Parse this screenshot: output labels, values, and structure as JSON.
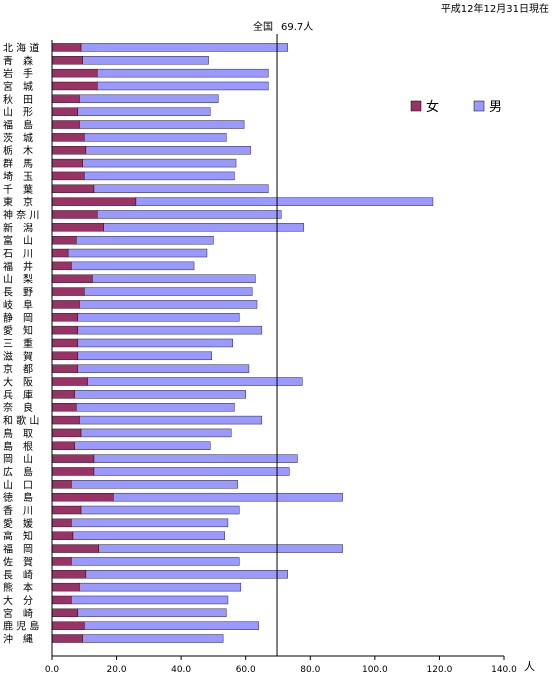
{
  "date_note": "平成12年12月31日現在",
  "national_label": "全国",
  "national_value_label": "69.7人",
  "unit": "人",
  "colors": {
    "female": "#993366",
    "male": "#9999ff",
    "axis": "#000000"
  },
  "chart_data": {
    "type": "bar",
    "orientation": "horizontal",
    "stacked": true,
    "categories": [
      "北 海 道",
      "青　森",
      "岩　手",
      "宮　城",
      "秋　田",
      "山　形",
      "福　島",
      "茨　城",
      "栃　木",
      "群　馬",
      "埼　玉",
      "千　葉",
      "東　京",
      "神 奈 川",
      "新　潟",
      "富　山",
      "石　川",
      "福　井",
      "山　梨",
      "長　野",
      "岐　阜",
      "静　岡",
      "愛　知",
      "三　重",
      "滋　賀",
      "京　都",
      "大　阪",
      "兵　庫",
      "奈　良",
      "和 歌 山",
      "鳥　取",
      "島　根",
      "岡　山",
      "広　島",
      "山　口",
      "徳　島",
      "香　川",
      "愛　媛",
      "高　知",
      "福　岡",
      "佐　賀",
      "長　崎",
      "熊　本",
      "大　分",
      "宮　崎",
      "鹿 児 島",
      "沖　縄"
    ],
    "series": [
      {
        "name": "女",
        "values": [
          9,
          9.5,
          14,
          14,
          8.5,
          8,
          8.5,
          10,
          10.5,
          9.5,
          10,
          13,
          26,
          14,
          16,
          7.5,
          5,
          6,
          12.5,
          10,
          8.5,
          8,
          8,
          8,
          8,
          8,
          11,
          7,
          7.5,
          8.5,
          9,
          7,
          13,
          13,
          6,
          19,
          9,
          6,
          6.5,
          14.5,
          6,
          10.5,
          8.5,
          6,
          8,
          10,
          9.5
        ]
      },
      {
        "name": "男",
        "values": [
          64,
          39,
          53,
          53,
          43,
          41,
          51,
          44,
          51,
          47.5,
          46.5,
          54,
          92,
          57,
          62,
          42.5,
          43,
          38,
          50.5,
          52,
          55,
          50,
          57,
          48,
          41.5,
          53,
          66.5,
          53,
          49,
          56.5,
          46.5,
          42,
          63,
          60.5,
          51.5,
          71,
          49,
          48.5,
          47,
          75.5,
          52,
          62.5,
          50,
          48.5,
          46,
          54,
          43.5
        ]
      }
    ],
    "xlim": [
      0,
      140
    ],
    "xticks": [
      "0.0",
      "20.0",
      "40.0",
      "60.0",
      "80.0",
      "100.0",
      "120.0",
      "140.0"
    ],
    "reference_line": 69.7,
    "legend_position": "right"
  }
}
